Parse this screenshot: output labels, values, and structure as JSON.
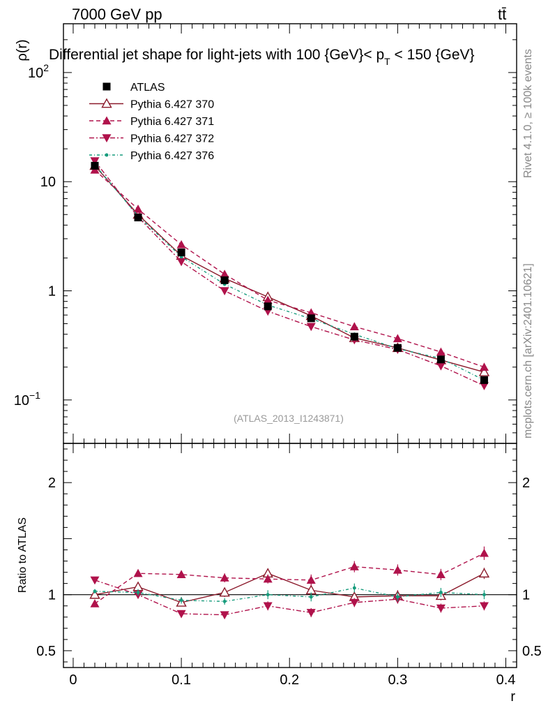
{
  "header": {
    "energy_label": "7000 GeV pp",
    "process_label": "tt̄",
    "title": "Differential jet shape for light-jets with 100 {GeV}< p",
    "title_sub": "T",
    "title_tail": " < 150 {GeV}",
    "analysis_id": "(ATLAS_2013_I1243871)",
    "side_rivet": "Rivet 4.1.0, ≥ 100k events",
    "side_mcplots": "mcplots.cern.ch [arXiv:2401.10621]"
  },
  "chart_data": [
    {
      "type": "line",
      "panel": "main",
      "ylabel": "ρ(r)",
      "xlabel": "r",
      "yscale": "log",
      "xlim": [
        -0.009,
        0.41
      ],
      "ylim": [
        0.04,
        280
      ],
      "yticks": [
        {
          "value": 0.1,
          "base": "10",
          "exp": "−1"
        },
        {
          "value": 1,
          "base": "1",
          "exp": ""
        },
        {
          "value": 10,
          "base": "10",
          "exp": ""
        },
        {
          "value": 100,
          "base": "10",
          "exp": "2"
        }
      ],
      "x": [
        0.02,
        0.06,
        0.1,
        0.14,
        0.18,
        0.22,
        0.26,
        0.3,
        0.34,
        0.38
      ],
      "series": [
        {
          "name": "ATLAS",
          "color": "#000000",
          "style": "data",
          "values": [
            14.0,
            4.7,
            2.25,
            1.25,
            0.72,
            0.56,
            0.38,
            0.3,
            0.235,
            0.152
          ],
          "errors": [
            0.6,
            0.2,
            0.1,
            0.06,
            0.04,
            0.03,
            0.02,
            0.015,
            0.012,
            0.01
          ]
        },
        {
          "name": "Pythia 6.427 370",
          "color": "#8b1a2b",
          "style": "solid",
          "marker": "triangle-open",
          "values": [
            14.0,
            5.0,
            2.1,
            1.3,
            0.88,
            0.59,
            0.37,
            0.3,
            0.232,
            0.18
          ]
        },
        {
          "name": "Pythia 6.427 371",
          "color": "#b0124b",
          "style": "dashed",
          "marker": "triangle-up",
          "values": [
            12.8,
            5.6,
            2.65,
            1.42,
            0.82,
            0.63,
            0.47,
            0.365,
            0.275,
            0.2
          ]
        },
        {
          "name": "Pythia 6.427 372",
          "color": "#b0124b",
          "style": "dashdot",
          "marker": "triangle-down",
          "values": [
            15.5,
            4.75,
            1.85,
            1.0,
            0.65,
            0.47,
            0.355,
            0.29,
            0.205,
            0.135
          ]
        },
        {
          "name": "Pythia 6.427 376",
          "color": "#179c7d",
          "style": "dashdot-fine",
          "marker": "dot",
          "values": [
            14.3,
            4.85,
            2.05,
            1.15,
            0.74,
            0.555,
            0.4,
            0.295,
            0.24,
            0.152
          ]
        }
      ]
    },
    {
      "type": "line",
      "panel": "ratio",
      "ylabel": "Ratio to ATLAS",
      "xlabel": "r",
      "xlim": [
        -0.009,
        0.41
      ],
      "ylim": [
        0.35,
        2.35
      ],
      "yticks": [
        {
          "value": 0.5,
          "label": "0.5"
        },
        {
          "value": 1,
          "label": "1"
        },
        {
          "value": 2,
          "label": "2"
        }
      ],
      "xticks": [
        {
          "value": 0,
          "label": "0"
        },
        {
          "value": 0.1,
          "label": "0.1"
        },
        {
          "value": 0.2,
          "label": "0.2"
        },
        {
          "value": 0.3,
          "label": "0.3"
        },
        {
          "value": 0.4,
          "label": "0.4"
        }
      ],
      "x": [
        0.02,
        0.06,
        0.1,
        0.14,
        0.18,
        0.22,
        0.26,
        0.3,
        0.34,
        0.38
      ],
      "series": [
        {
          "name": "Pythia 6.427 370",
          "color": "#8b1a2b",
          "style": "solid",
          "marker": "triangle-open",
          "values": [
            1.0,
            1.07,
            0.93,
            1.02,
            1.19,
            1.04,
            0.98,
            0.99,
            0.99,
            1.19
          ],
          "errors": [
            0.02,
            0.03,
            0.03,
            0.04,
            0.04,
            0.04,
            0.05,
            0.05,
            0.04,
            0.05
          ]
        },
        {
          "name": "Pythia 6.427 371",
          "color": "#b0124b",
          "style": "dashed",
          "marker": "triangle-up",
          "values": [
            0.92,
            1.19,
            1.18,
            1.15,
            1.14,
            1.13,
            1.25,
            1.22,
            1.18,
            1.37
          ],
          "errors": [
            0.02,
            0.03,
            0.03,
            0.04,
            0.04,
            0.05,
            0.05,
            0.05,
            0.05,
            0.06
          ]
        },
        {
          "name": "Pythia 6.427 372",
          "color": "#b0124b",
          "style": "dashdot",
          "marker": "triangle-down",
          "values": [
            1.13,
            1.0,
            0.83,
            0.82,
            0.9,
            0.84,
            0.93,
            0.96,
            0.88,
            0.9
          ],
          "errors": [
            0.02,
            0.03,
            0.03,
            0.03,
            0.04,
            0.04,
            0.04,
            0.04,
            0.04,
            0.04
          ]
        },
        {
          "name": "Pythia 6.427 376",
          "color": "#179c7d",
          "style": "dashdot-fine",
          "marker": "dot",
          "values": [
            1.03,
            1.02,
            0.95,
            0.94,
            1.0,
            0.98,
            1.06,
            0.98,
            1.02,
            1.0
          ],
          "errors": [
            0.02,
            0.03,
            0.03,
            0.03,
            0.04,
            0.04,
            0.04,
            0.04,
            0.04,
            0.04
          ]
        }
      ]
    }
  ]
}
